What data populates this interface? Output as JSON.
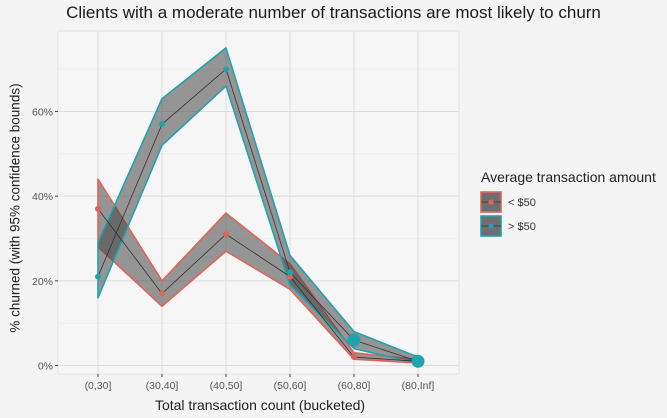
{
  "chart_data": {
    "type": "line",
    "title": "Clients with a moderate number of transactions are most likely to churn",
    "xlabel": "Total transaction count (bucketed)",
    "ylabel": "% churned (with 95% confidence bounds)",
    "categories": [
      "(0,30]",
      "(30,40]",
      "(40,50]",
      "(50,60]",
      "(60,80]",
      "(80,Inf]"
    ],
    "ylim": [
      -2,
      79
    ],
    "yticks": [
      0,
      20,
      40,
      60
    ],
    "ytick_labels": [
      "0%",
      "20%",
      "40%",
      "60%"
    ],
    "grid": true,
    "legend": {
      "title": "Average transaction amount",
      "placement": "right"
    },
    "series": [
      {
        "name": "< $50",
        "color": "#e0635a",
        "values": [
          37,
          17,
          31,
          21,
          2,
          1
        ],
        "lower": [
          28,
          14,
          27,
          18,
          1.5,
          0.6
        ],
        "upper": [
          44,
          20,
          36,
          24,
          3,
          1.4
        ],
        "sizes": [
          3,
          3,
          3,
          3,
          3,
          5
        ]
      },
      {
        "name": "> $50",
        "color": "#1fa3ad",
        "values": [
          21,
          57,
          70,
          22,
          6,
          1
        ],
        "lower": [
          16,
          52,
          66,
          19,
          4,
          0.5
        ],
        "upper": [
          29,
          63,
          75,
          26,
          8,
          2
        ],
        "sizes": [
          3,
          3,
          3,
          3,
          6.5,
          6.5
        ]
      }
    ]
  }
}
